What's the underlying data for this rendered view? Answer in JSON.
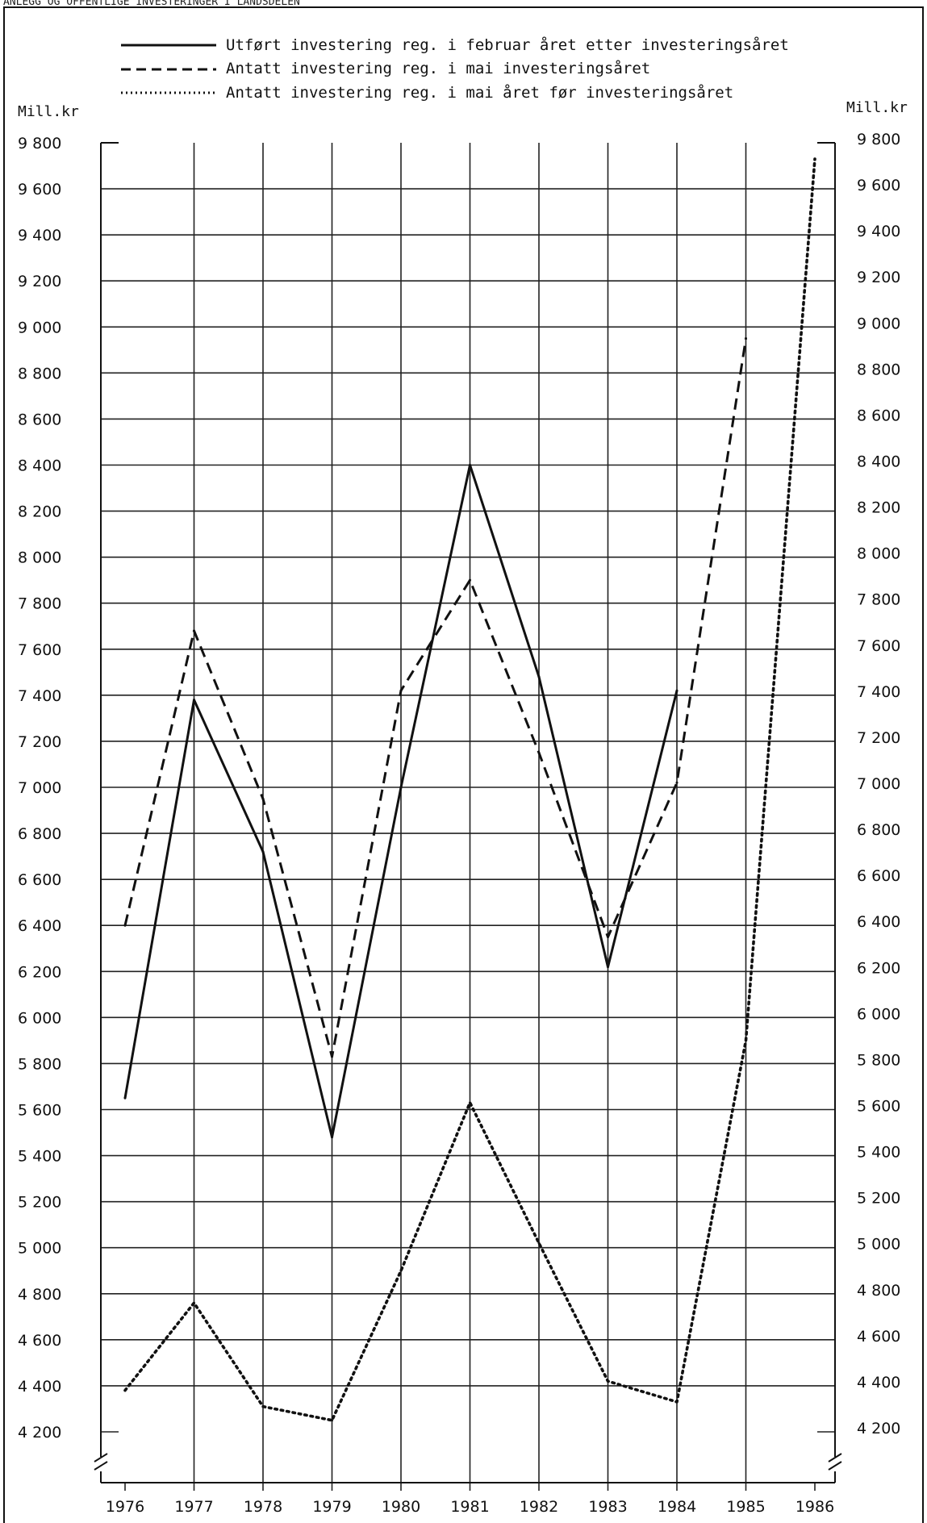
{
  "header_text": "ANLEGG OG OFFENTLIGE INVESTERINGER I LANDSDELEN",
  "chart_data": {
    "type": "line",
    "ylabel_left": "Mill.kr",
    "ylabel_right": "Mill.kr",
    "ylim": [
      4100,
      9800
    ],
    "yticks": [
      4200,
      4400,
      4600,
      4800,
      5000,
      5200,
      5400,
      5600,
      5800,
      6000,
      6200,
      6400,
      6600,
      6800,
      7000,
      7200,
      7400,
      7600,
      7800,
      8000,
      8200,
      8400,
      8600,
      8800,
      9000,
      9200,
      9400,
      9600,
      9800
    ],
    "ytick_labels": [
      "4 200",
      "4 400",
      "4 600",
      "4 800",
      "5 000",
      "5 200",
      "5 400",
      "5 600",
      "5 800",
      "6 000",
      "6 200",
      "6 400",
      "6 600",
      "6 800",
      "7 000",
      "7 200",
      "7 400",
      "7 600",
      "7 800",
      "8 000",
      "8 200",
      "8 400",
      "8 600",
      "8 800",
      "9 000",
      "9 200",
      "9 400",
      "9 600",
      "9 800"
    ],
    "categories": [
      "1976",
      "1977",
      "1978",
      "1979",
      "1980",
      "1981",
      "1982",
      "1983",
      "1984",
      "1985",
      "1986"
    ],
    "grid": true,
    "legend_position": "top",
    "series": [
      {
        "name": "Utført investering reg. i februar året etter investeringsåret",
        "style": "solid",
        "color": "#111111",
        "values": [
          5650,
          7380,
          6720,
          5480,
          7000,
          8400,
          7480,
          6220,
          7420,
          null,
          null
        ]
      },
      {
        "name": "Antatt investering reg. i mai investeringsåret",
        "style": "dashed",
        "color": "#111111",
        "values": [
          6400,
          7680,
          6950,
          5830,
          7420,
          7900,
          7150,
          6350,
          7020,
          8950,
          null
        ]
      },
      {
        "name": "Antatt investering reg. i mai året før investeringsåret",
        "style": "dotted",
        "color": "#111111",
        "values": [
          4380,
          4760,
          4310,
          4250,
          4900,
          5630,
          5020,
          4420,
          4330,
          5900,
          9730
        ]
      }
    ]
  }
}
